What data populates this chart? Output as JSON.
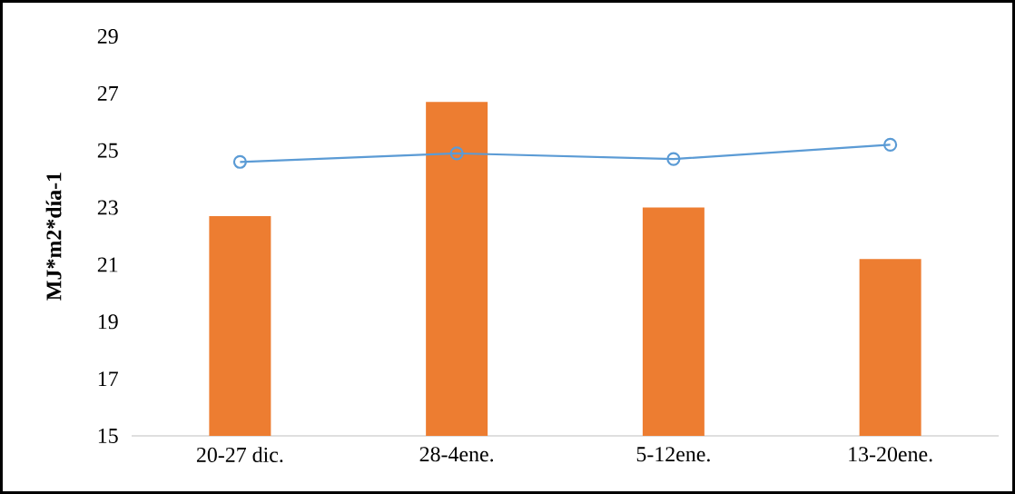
{
  "chart_data": {
    "type": "bar",
    "ylabel": "MJ*m2*día-1",
    "categories": [
      "20-27 dic.",
      "28-4ene.",
      "5-12ene.",
      "13-20ene."
    ],
    "ylim": [
      15,
      29
    ],
    "yticks": [
      15,
      17,
      19,
      21,
      23,
      25,
      27,
      29
    ],
    "grid": false,
    "marker": "circle",
    "line_style": "solid",
    "series": [
      {
        "color": "#ed7d31",
        "values": [
          22.7,
          26.7,
          23.0,
          21.2
        ]
      },
      {
        "type": "line",
        "color": "#5b9bd5",
        "values": [
          24.6,
          24.9,
          24.7,
          25.2
        ]
      }
    ]
  }
}
